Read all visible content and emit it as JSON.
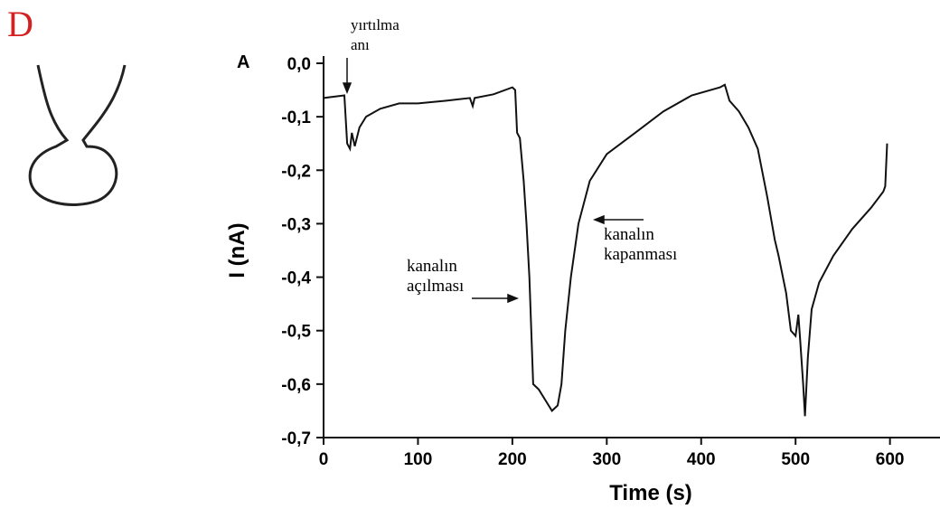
{
  "figure_label": "D",
  "chart_data": {
    "type": "line",
    "panel_label": "A",
    "x_label": "Time (s)",
    "y_label": "I (nA)",
    "xlim": [
      0,
      653
    ],
    "ylim": [
      -0.7,
      0.0
    ],
    "xticks": [
      0,
      100,
      200,
      300,
      400,
      500,
      600
    ],
    "yticks": [
      {
        "value": 0.0,
        "label": "0,0"
      },
      {
        "value": -0.1,
        "label": "-0,1"
      },
      {
        "value": -0.2,
        "label": "-0,2"
      },
      {
        "value": -0.3,
        "label": "-0,3"
      },
      {
        "value": -0.4,
        "label": "-0,4"
      },
      {
        "value": -0.5,
        "label": "-0,5"
      },
      {
        "value": -0.6,
        "label": "-0,6"
      },
      {
        "value": -0.7,
        "label": "-0,7"
      }
    ],
    "series": [
      {
        "color": "#111111",
        "x": [
          0,
          22,
          25,
          28,
          30,
          33,
          38,
          45,
          60,
          80,
          100,
          130,
          155,
          158,
          160,
          180,
          200,
          203,
          205,
          208,
          212,
          215,
          218,
          220,
          222,
          228,
          235,
          242,
          248,
          252,
          256,
          262,
          270,
          282,
          300,
          330,
          360,
          390,
          420,
          425,
          430,
          440,
          450,
          460,
          470,
          478,
          482,
          490,
          495,
          500,
          503,
          505,
          508,
          510,
          513,
          517,
          525,
          540,
          560,
          580,
          593,
          595,
          597
        ],
        "values": [
          -0.065,
          -0.06,
          -0.15,
          -0.16,
          -0.13,
          -0.155,
          -0.12,
          -0.1,
          -0.085,
          -0.075,
          -0.075,
          -0.07,
          -0.065,
          -0.08,
          -0.065,
          -0.058,
          -0.045,
          -0.05,
          -0.13,
          -0.14,
          -0.22,
          -0.3,
          -0.4,
          -0.5,
          -0.6,
          -0.61,
          -0.63,
          -0.65,
          -0.64,
          -0.6,
          -0.5,
          -0.4,
          -0.3,
          -0.22,
          -0.17,
          -0.13,
          -0.09,
          -0.06,
          -0.045,
          -0.04,
          -0.07,
          -0.09,
          -0.12,
          -0.16,
          -0.25,
          -0.33,
          -0.36,
          -0.43,
          -0.5,
          -0.51,
          -0.47,
          -0.52,
          -0.6,
          -0.66,
          -0.55,
          -0.46,
          -0.41,
          -0.36,
          -0.31,
          -0.27,
          -0.24,
          -0.23,
          -0.15
        ]
      }
    ],
    "annotations": [
      {
        "lines": [
          "yırtılma",
          "anı"
        ]
      },
      {
        "lines": [
          "kanalın",
          "açılması"
        ]
      },
      {
        "lines": [
          "kanalın",
          "kapanması"
        ]
      }
    ]
  }
}
